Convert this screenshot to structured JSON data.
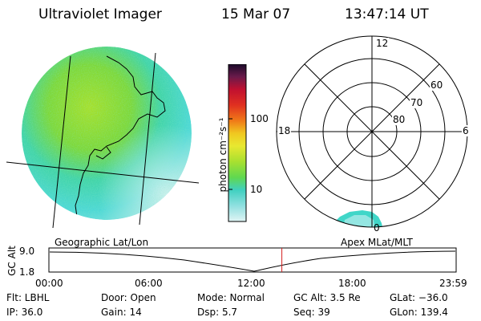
{
  "header": {
    "title": "Ultraviolet Imager",
    "date": "15 Mar 07",
    "time": "13:47:14 UT"
  },
  "colorbar": {
    "label": "photon cm⁻²s⁻¹",
    "ticks": [
      "100",
      "10"
    ]
  },
  "polar_plot": {
    "mlt_labels": {
      "top": "12",
      "left": "18",
      "right": "6",
      "bottom": "0"
    },
    "lat_labels": [
      "60",
      "70",
      "80"
    ]
  },
  "coord_labels": {
    "geographic": "Geographic Lat/Lon",
    "apex": "Apex  MLat/MLT"
  },
  "altitude_plot": {
    "axis_label": "GC Alt",
    "y_ticks": [
      "9.0",
      "1.8"
    ],
    "x_ticks": [
      "00:00",
      "06:00",
      "12:00",
      "18:00",
      "23:59"
    ],
    "current_time_fraction": 0.572
  },
  "info": {
    "filter": "Flt: LBHL",
    "ip": "IP: 36.0",
    "door": "Door: Open",
    "gain": "Gain: 14",
    "mode": "Mode: Normal",
    "dsp": "Dsp:     5.7",
    "gc_alt": "GC Alt: 3.5 Re",
    "seq": "Seq: 39",
    "glat": "GLat: −36.0",
    "glon": "GLon: 139.4"
  },
  "colors": {
    "polar_blob": "#40d6c8",
    "current_time_marker": "#d42020"
  }
}
